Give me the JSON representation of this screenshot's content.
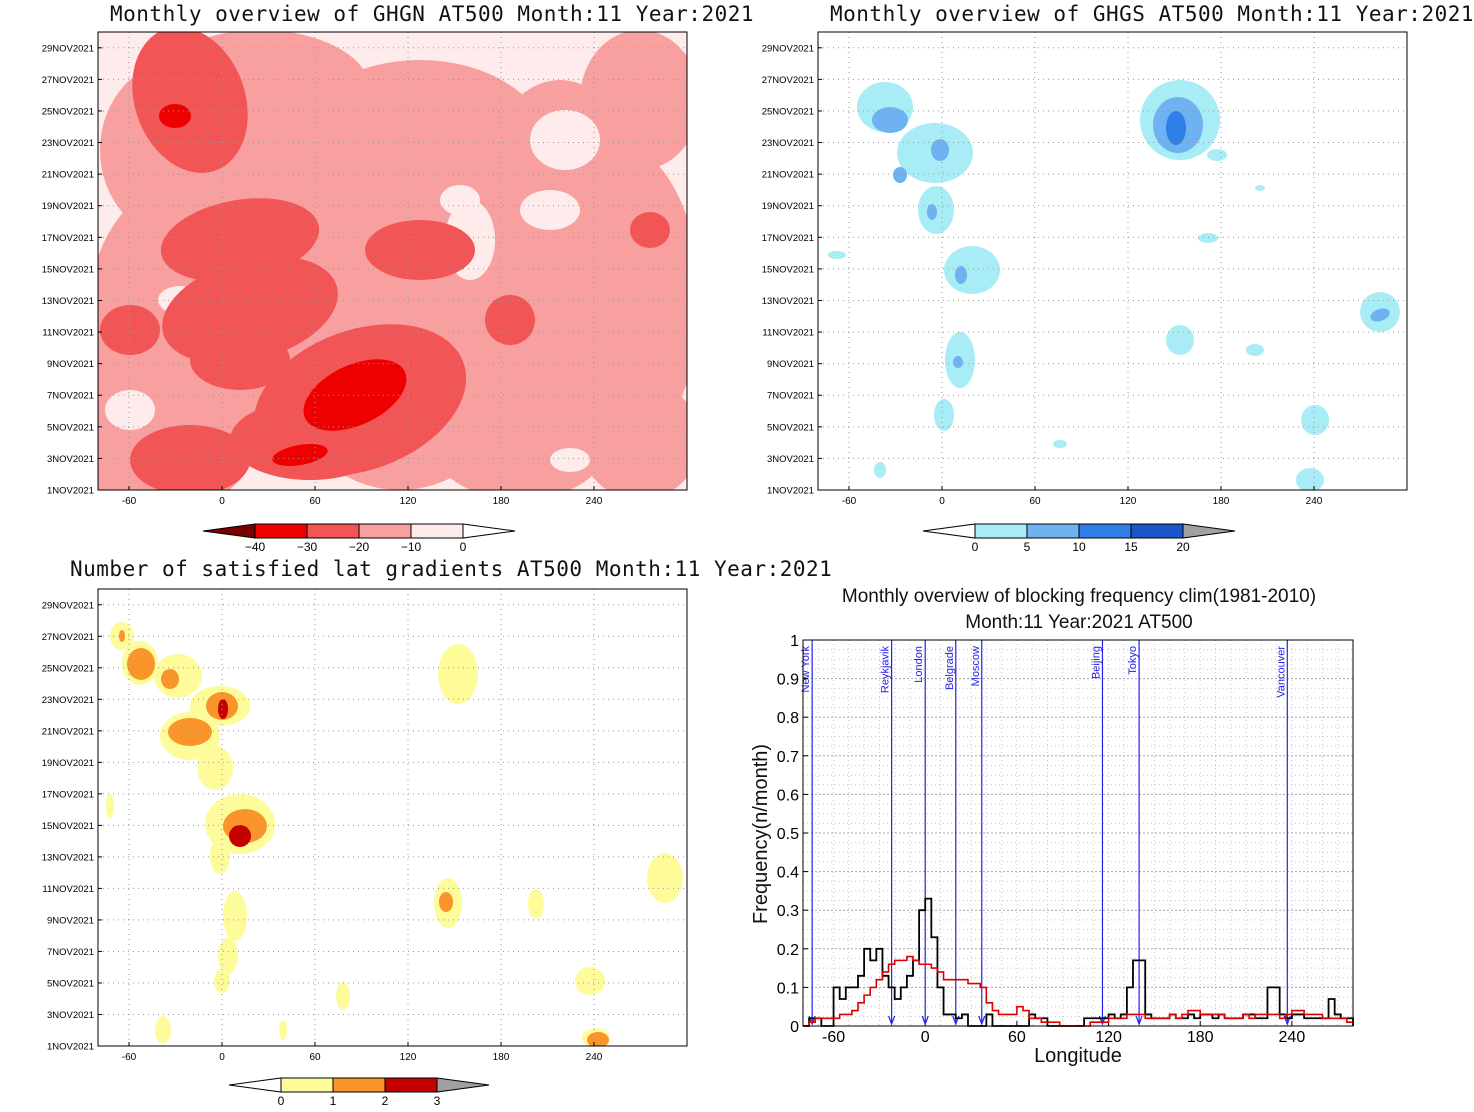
{
  "panels": {
    "ghgn": {
      "title": "Monthly overview of GHGN AT500 Month:11 Year:2021",
      "y_ticks": [
        "1NOV2021",
        "3NOV2021",
        "5NOV2021",
        "7NOV2021",
        "9NOV2021",
        "11NOV2021",
        "13NOV2021",
        "15NOV2021",
        "17NOV2021",
        "19NOV2021",
        "21NOV2021",
        "23NOV2021",
        "25NOV2021",
        "27NOV2021",
        "29NOV2021"
      ],
      "x_ticks": [
        "-60",
        "0",
        "60",
        "120",
        "180",
        "240"
      ],
      "colorbar": {
        "labels": [
          "−40",
          "−30",
          "−20",
          "−10",
          "0"
        ],
        "colors": [
          "#7a0000",
          "#ee0000",
          "#f25555",
          "#f8a0a0",
          "#fdeceb",
          "#ffffff"
        ]
      }
    },
    "ghgs": {
      "title": "Monthly overview of GHGS AT500 Month:11 Year:2021",
      "y_ticks": [
        "1NOV2021",
        "3NOV2021",
        "5NOV2021",
        "7NOV2021",
        "9NOV2021",
        "11NOV2021",
        "13NOV2021",
        "15NOV2021",
        "17NOV2021",
        "19NOV2021",
        "21NOV2021",
        "23NOV2021",
        "25NOV2021",
        "27NOV2021",
        "29NOV2021"
      ],
      "x_ticks": [
        "-60",
        "0",
        "60",
        "120",
        "180",
        "240"
      ],
      "colorbar": {
        "labels": [
          "0",
          "5",
          "10",
          "15",
          "20"
        ],
        "colors": [
          "#ffffff",
          "#a8ecf5",
          "#6fb2f2",
          "#2f7fe8",
          "#1a56c8",
          "#a0a0a0"
        ]
      }
    },
    "lat": {
      "title": "Number of satisfied lat gradients AT500 Month:11 Year:2021",
      "y_ticks": [
        "1NOV2021",
        "3NOV2021",
        "5NOV2021",
        "7NOV2021",
        "9NOV2021",
        "11NOV2021",
        "13NOV2021",
        "15NOV2021",
        "17NOV2021",
        "19NOV2021",
        "21NOV2021",
        "23NOV2021",
        "25NOV2021",
        "27NOV2021",
        "29NOV2021"
      ],
      "x_ticks": [
        "-60",
        "0",
        "60",
        "120",
        "180",
        "240"
      ],
      "colorbar": {
        "labels": [
          "0",
          "1",
          "2",
          "3"
        ],
        "colors": [
          "#ffffff",
          "#fdfb9a",
          "#f9952a",
          "#c40000",
          "#a0a0a0"
        ]
      }
    },
    "block": {
      "title_line1": "Monthly overview of blocking frequency clim(1981-2010)",
      "title_line2": "Month:11 Year:2021  AT500",
      "xlabel": "Longitude",
      "ylabel": "Frequency(n/month)",
      "x_ticks": [
        "-60",
        "0",
        "60",
        "120",
        "180",
        "240"
      ],
      "y_ticks": [
        "0",
        "0.1",
        "0.2",
        "0.3",
        "0.4",
        "0.5",
        "0.6",
        "0.7",
        "0.8",
        "0.9",
        "1"
      ]
    }
  },
  "chart_data": [
    {
      "type": "heatmap",
      "title": "Monthly overview of GHGN AT500 Month:11 Year:2021",
      "xlim": [
        -80,
        300
      ],
      "ylim": [
        "1NOV2021",
        "30NOV2021"
      ],
      "levels": [
        -40,
        -30,
        -20,
        -10,
        0
      ],
      "regions": [
        {
          "level": -30,
          "lon": 90,
          "day": 7,
          "note_dates": [
            "4NOV2021",
            "9NOV2021"
          ]
        },
        {
          "level": -30,
          "lon": -35,
          "day": 25
        }
      ]
    },
    {
      "type": "heatmap",
      "title": "Monthly overview of GHGS AT500 Month:11 Year:2021",
      "xlim": [
        -80,
        300
      ],
      "ylim": [
        "1NOV2021",
        "30NOV2021"
      ],
      "levels": [
        0,
        5,
        10,
        15,
        20
      ],
      "regions": [
        {
          "level": 15,
          "lon": 140,
          "day": 24
        },
        {
          "level": 10,
          "lon": -35,
          "day": 25
        },
        {
          "level": 10,
          "lon": 270,
          "day": 12
        }
      ]
    },
    {
      "type": "heatmap",
      "title": "Number of satisfied lat gradients AT500 Month:11 Year:2021",
      "xlim": [
        -80,
        300
      ],
      "ylim": [
        "1NOV2021",
        "30NOV2021"
      ],
      "levels": [
        0,
        1,
        2,
        3
      ],
      "regions": [
        {
          "level": 3,
          "lon": 5,
          "day": 15
        },
        {
          "level": 3,
          "lon": -5,
          "day": 23
        },
        {
          "level": 2,
          "lon": 135,
          "day": 10
        },
        {
          "level": 2,
          "lon": 225,
          "day": 1
        }
      ]
    },
    {
      "type": "line",
      "title": "Monthly overview of blocking frequency clim(1981-2010) Month:11 Year:2021 AT500",
      "xlabel": "Longitude",
      "ylabel": "Frequency(n/month)",
      "xlim": [
        -80,
        280
      ],
      "ylim": [
        0,
        1
      ],
      "grid": true,
      "series": [
        {
          "color": "#000000",
          "x": [
            -80,
            -76,
            -72,
            -68,
            -64,
            -60,
            -56,
            -52,
            -48,
            -44,
            -40,
            -36,
            -32,
            -28,
            -24,
            -20,
            -16,
            -12,
            -8,
            -4,
            0,
            4,
            8,
            12,
            16,
            20,
            24,
            28,
            32,
            36,
            40,
            44,
            48,
            52,
            56,
            60,
            64,
            68,
            72,
            76,
            80,
            84,
            88,
            92,
            96,
            100,
            104,
            108,
            112,
            116,
            120,
            124,
            128,
            132,
            136,
            140,
            144,
            148,
            152,
            156,
            160,
            164,
            168,
            172,
            176,
            180,
            184,
            188,
            192,
            196,
            200,
            204,
            208,
            212,
            216,
            220,
            224,
            228,
            232,
            236,
            240,
            244,
            248,
            252,
            256,
            260,
            264,
            268,
            272,
            276,
            280
          ],
          "y": [
            0,
            0.02,
            0.02,
            0,
            0,
            0.1,
            0.07,
            0.1,
            0.1,
            0.13,
            0.2,
            0.17,
            0.2,
            0.13,
            0.1,
            0.07,
            0.1,
            0.13,
            0.17,
            0.3,
            0.33,
            0.23,
            0.1,
            0.03,
            0.03,
            0.02,
            0.03,
            0,
            0,
            0,
            0.03,
            0,
            0,
            0,
            0,
            0,
            0,
            0.03,
            0.02,
            0.02,
            0,
            0,
            0,
            0,
            0,
            0,
            0.02,
            0.02,
            0.02,
            0.02,
            0.03,
            0.02,
            0.03,
            0.1,
            0.17,
            0.17,
            0.03,
            0.02,
            0.02,
            0.02,
            0.03,
            0.02,
            0.02,
            0.03,
            0.02,
            0.03,
            0.03,
            0.02,
            0.03,
            0.02,
            0.02,
            0.02,
            0.03,
            0.03,
            0.02,
            0.02,
            0.1,
            0.1,
            0.03,
            0.02,
            0.03,
            0.03,
            0.02,
            0.02,
            0.02,
            0.02,
            0.07,
            0.03,
            0.02,
            0.02,
            0
          ]
        },
        {
          "color": "#dd0000",
          "x": [
            -80,
            -76,
            -72,
            -68,
            -64,
            -60,
            -56,
            -52,
            -48,
            -44,
            -40,
            -36,
            -32,
            -28,
            -24,
            -20,
            -16,
            -12,
            -8,
            -4,
            0,
            4,
            8,
            12,
            16,
            20,
            24,
            28,
            32,
            36,
            40,
            44,
            48,
            52,
            56,
            60,
            64,
            68,
            72,
            76,
            80,
            84,
            88,
            92,
            96,
            100,
            104,
            108,
            112,
            116,
            120,
            124,
            128,
            132,
            136,
            140,
            144,
            148,
            152,
            156,
            160,
            164,
            168,
            172,
            176,
            180,
            184,
            188,
            192,
            196,
            200,
            204,
            208,
            212,
            216,
            220,
            224,
            228,
            232,
            236,
            240,
            244,
            248,
            252,
            256,
            260,
            264,
            268,
            272,
            276,
            280
          ],
          "y": [
            0,
            0.01,
            0.02,
            0.02,
            0.02,
            0.02,
            0.03,
            0.03,
            0.04,
            0.06,
            0.08,
            0.1,
            0.12,
            0.14,
            0.16,
            0.17,
            0.17,
            0.18,
            0.17,
            0.16,
            0.16,
            0.15,
            0.14,
            0.12,
            0.12,
            0.12,
            0.12,
            0.11,
            0.11,
            0.1,
            0.06,
            0.04,
            0.03,
            0.03,
            0.03,
            0.05,
            0.04,
            0.02,
            0.02,
            0.01,
            0.01,
            0.01,
            0,
            0,
            0,
            0,
            0,
            0.01,
            0.01,
            0.01,
            0.02,
            0.02,
            0.02,
            0.03,
            0.03,
            0.03,
            0.02,
            0.02,
            0.02,
            0.02,
            0.03,
            0.02,
            0.03,
            0.04,
            0.04,
            0.03,
            0.03,
            0.03,
            0.03,
            0.02,
            0.02,
            0.02,
            0.03,
            0.02,
            0.03,
            0.03,
            0.03,
            0.03,
            0.02,
            0.03,
            0.04,
            0.04,
            0.03,
            0.03,
            0.03,
            0.02,
            0.02,
            0.02,
            0.02,
            0.01,
            0.01
          ]
        }
      ],
      "markers": [
        {
          "label": "New York",
          "lon": -74
        },
        {
          "label": "Reykjavik",
          "lon": -22
        },
        {
          "label": "London",
          "lon": 0
        },
        {
          "label": "Belgrade",
          "lon": 20
        },
        {
          "label": "Moscow",
          "lon": 37
        },
        {
          "label": "Beijing",
          "lon": 116
        },
        {
          "label": "Tokyo",
          "lon": 140
        },
        {
          "label": "Vancouver",
          "lon": 237
        }
      ]
    }
  ]
}
